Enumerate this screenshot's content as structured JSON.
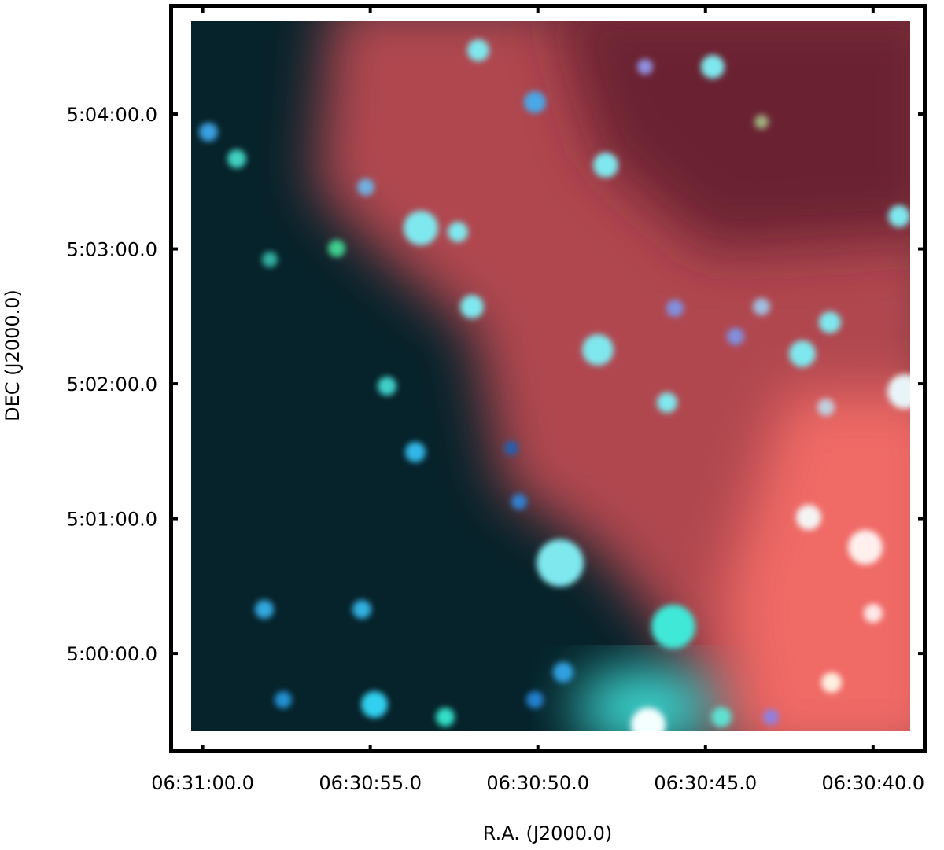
{
  "chart_data": {
    "type": "image",
    "xlabel": "R.A. (J2000.0)",
    "ylabel": "DEC (J2000.0)",
    "xlim": [
      23461.0,
      23438.4
    ],
    "ylim": [
      17955.6,
      18289
    ],
    "xticks": [
      {
        "value": 23460,
        "label": "06:31:00.0"
      },
      {
        "value": 23455,
        "label": "06:30:55.0"
      },
      {
        "value": 23450,
        "label": "06:30:50.0"
      },
      {
        "value": 23445,
        "label": "06:30:45.0"
      },
      {
        "value": 23440,
        "label": "06:30:40.0"
      }
    ],
    "yticks": [
      {
        "value": 18000,
        "label": "5:00:00.0"
      },
      {
        "value": 18060,
        "label": "5:01:00.0"
      },
      {
        "value": 18120,
        "label": "5:02:00.0"
      },
      {
        "value": 18180,
        "label": "5:03:00.0"
      },
      {
        "value": 18240,
        "label": "5:04:00.0"
      }
    ]
  }
}
